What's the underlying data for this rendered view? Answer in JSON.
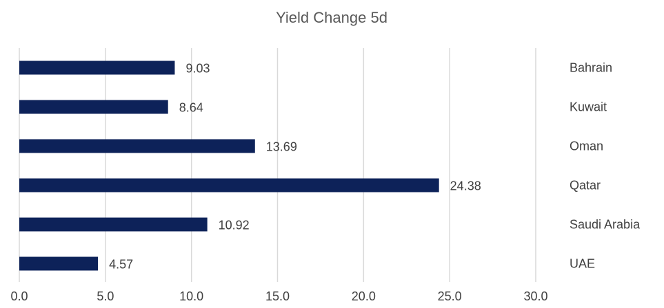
{
  "chart_data": {
    "type": "bar",
    "orientation": "horizontal",
    "title": "Yield Change 5d",
    "xlabel": "",
    "ylabel": "",
    "categories": [
      "Bahrain",
      "Kuwait",
      "Oman",
      "Qatar",
      "Saudi Arabia",
      "UAE"
    ],
    "values": [
      9.03,
      8.64,
      13.69,
      24.38,
      10.92,
      4.57
    ],
    "data_labels": [
      "9.03",
      "8.64",
      "13.69",
      "24.38",
      "10.92",
      "4.57"
    ],
    "xlim": [
      0,
      30
    ],
    "x_ticks": [
      "0.0",
      "5.0",
      "10.0",
      "15.0",
      "20.0",
      "25.0",
      "30.0"
    ],
    "tick_values": [
      0,
      5,
      10,
      15,
      20,
      25,
      30
    ],
    "grid": "vertical",
    "legend": "none",
    "category_labels_position": "right",
    "bar_color": "#0d2259",
    "grid_color": "#d9d9d9"
  }
}
